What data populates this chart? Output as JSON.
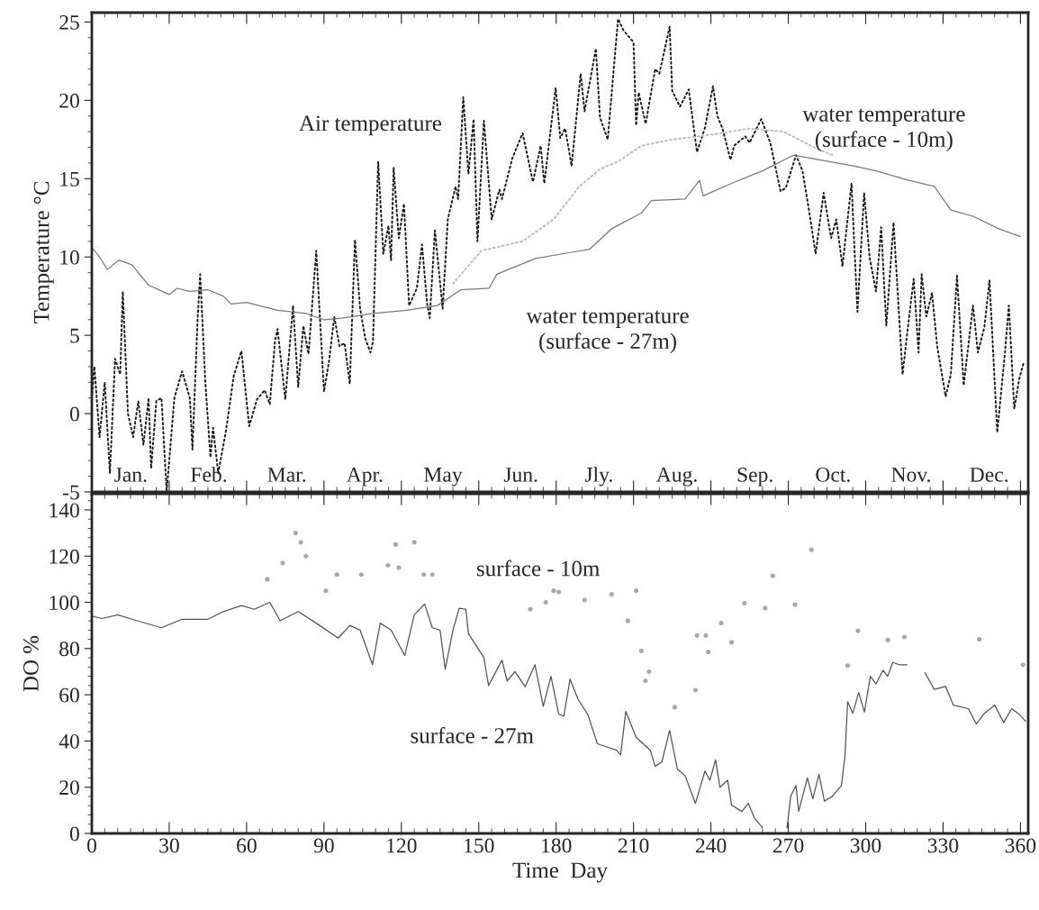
{
  "chart_data": [
    {
      "type": "line",
      "ylabel": "Temperature °C",
      "xlim": [
        0,
        363
      ],
      "ylim": [
        -5,
        25.6
      ],
      "yticks": [
        -5,
        0,
        5,
        10,
        15,
        20,
        25
      ],
      "tick_labels": "y",
      "annotations": [
        "Air temperature",
        "water temperature\n(surface - 10m)",
        "water temperature\n(surface - 27m)",
        "Jan.",
        "Feb.",
        "Mar.",
        "Apr.",
        "May",
        "Jun.",
        "Jly.",
        "Aug.",
        "Sep.",
        "Oct.",
        "Nov.",
        "Dec."
      ],
      "series": [
        {
          "line_style": "dotted",
          "color": "#1a1a1a",
          "x": [
            0,
            1,
            3,
            5,
            7,
            9,
            11,
            12,
            14,
            16,
            18,
            20,
            22,
            23,
            25,
            27,
            29,
            32,
            35,
            38,
            39,
            41,
            42,
            44,
            46,
            47,
            49,
            52,
            55,
            58,
            61,
            64,
            67,
            69,
            71,
            72,
            75,
            78,
            80,
            82,
            84,
            87,
            90,
            92,
            94,
            96,
            98,
            100,
            102,
            104,
            106,
            108,
            109,
            111,
            113,
            115,
            116,
            117,
            119,
            121,
            123,
            126,
            128,
            130,
            131,
            133,
            136,
            138,
            141,
            142,
            144,
            146,
            148,
            149.5,
            152,
            155,
            158,
            159,
            163,
            167,
            171,
            174,
            175.4,
            179.8,
            181.6,
            183.5,
            186,
            189.5,
            191,
            195.4,
            197,
            200,
            204,
            206,
            210,
            211,
            212,
            214.7,
            218.4,
            220,
            224,
            225,
            228,
            231.4,
            234.6,
            237.6,
            240.8,
            242.5,
            244.5,
            247.6,
            249,
            253.3,
            255,
            259.5,
            263,
            267,
            269,
            273,
            275.5,
            278,
            280.6,
            283.7,
            286.6,
            288.6,
            291,
            294.5,
            296.8,
            299.4,
            301.5,
            304,
            306,
            308,
            310.8,
            314.3,
            316,
            318.6,
            320.5,
            321.7,
            323.5,
            325.7,
            327.8,
            331,
            333,
            335.4,
            338,
            341.6,
            343.5,
            346,
            348,
            351,
            354,
            355.5,
            357.6,
            359.5,
            361.3
          ],
          "values": [
            1,
            3,
            -1.5,
            2,
            -3.8,
            3.5,
            2.5,
            7.8,
            0,
            -1.5,
            0.8,
            -2,
            1,
            -3.5,
            0.8,
            1,
            -5,
            1,
            2.7,
            1,
            -2.3,
            6,
            8.9,
            2,
            -2.8,
            -0.9,
            -3.8,
            -1.1,
            2.4,
            4,
            -0.8,
            0.9,
            1.5,
            0.6,
            4.6,
            5.4,
            0.9,
            6.9,
            1.7,
            5.6,
            3.8,
            10.4,
            1.4,
            3.4,
            6.2,
            4.3,
            4.5,
            1.9,
            11.1,
            6.7,
            4.8,
            3.9,
            4.6,
            16.1,
            10.2,
            12,
            9.8,
            15.7,
            11.2,
            13.4,
            6.9,
            8,
            10.8,
            7,
            6.1,
            11.7,
            6.7,
            12.4,
            14.5,
            13.7,
            20.2,
            15.3,
            18.8,
            11,
            18.7,
            12.4,
            14.3,
            13.7,
            16.3,
            17.9,
            14.8,
            17.1,
            14.7,
            20.8,
            17.6,
            18.2,
            15.8,
            21.7,
            19.3,
            23.3,
            18.9,
            17.5,
            25.2,
            24.5,
            23.7,
            18.4,
            20.5,
            18.5,
            22,
            21.7,
            24.7,
            20.6,
            19.6,
            20.7,
            16.7,
            18.2,
            20.9,
            19,
            18.2,
            16.2,
            17.1,
            17.7,
            17.3,
            18.8,
            17.3,
            14.2,
            14.4,
            16.5,
            15.5,
            13,
            10.2,
            14.1,
            11.2,
            12.4,
            9.4,
            14.7,
            6.5,
            14.1,
            10,
            7.8,
            11.9,
            5.6,
            12.2,
            2.5,
            5,
            8.6,
            3.9,
            8.9,
            6.2,
            7.7,
            4.2,
            1.1,
            2.5,
            8.8,
            1.8,
            6.9,
            3.9,
            5.5,
            8.5,
            -1.2,
            3.9,
            6.9,
            0.3,
            2.2,
            3.3
          ]
        },
        {
          "line_style": "solid",
          "color": "#7a7a7a",
          "x": [
            0,
            3,
            6,
            10.5,
            15.5,
            22,
            30,
            33,
            38,
            45,
            51,
            54,
            60,
            72,
            83,
            90,
            97,
            109,
            122,
            134,
            143,
            154,
            157,
            172,
            186,
            193,
            201.5,
            213,
            217,
            230,
            235.6,
            237,
            248,
            260,
            272,
            285.5,
            295.6,
            304,
            316.7,
            326.6,
            333,
            341.6,
            351.6,
            360
          ],
          "values": [
            10.6,
            10,
            9.2,
            9.8,
            9.5,
            8.2,
            7.6,
            8,
            7.8,
            7.9,
            7.5,
            7,
            7.1,
            6.6,
            6.4,
            6,
            6.1,
            6.4,
            6.6,
            6.9,
            7.9,
            8,
            8.9,
            9.9,
            10.3,
            10.5,
            11.8,
            12.8,
            13.6,
            13.7,
            14.9,
            13.9,
            14.7,
            15.5,
            16.5,
            16.1,
            15.8,
            15.5,
            14.9,
            14.5,
            13,
            12.6,
            11.8,
            11.3
          ]
        },
        {
          "line_style": "dotted",
          "color": "#bdbdbd",
          "x": [
            140,
            151,
            167,
            179,
            189,
            197,
            204,
            213,
            225,
            240,
            255,
            268,
            280,
            287
          ],
          "values": [
            8.3,
            10.4,
            11,
            12.4,
            14.5,
            15.6,
            16.1,
            17.1,
            17.5,
            17.8,
            18.2,
            18,
            17,
            16.5
          ]
        }
      ]
    },
    {
      "type": "line",
      "ylabel": "DO %",
      "xlabel": "Time  Day",
      "xlim": [
        0,
        363
      ],
      "ylim": [
        0,
        147
      ],
      "yticks": [
        0,
        20,
        40,
        60,
        80,
        100,
        120,
        140
      ],
      "xticks": [
        0,
        30,
        60,
        90,
        120,
        150,
        180,
        210,
        240,
        270,
        300,
        330,
        360
      ],
      "annotations": [
        "surface - 10m",
        "surface - 27m"
      ],
      "series": [
        {
          "line_style": "solid",
          "color": "#555555",
          "x": [
            0,
            4,
            10,
            15.5,
            27,
            35,
            45,
            51,
            58,
            63,
            69,
            73,
            80,
            87,
            95.5,
            100,
            104,
            108.8,
            111.8,
            116,
            121.3,
            125,
            129,
            132,
            135,
            137,
            140,
            142.4,
            145,
            146,
            152,
            153.8,
            159,
            161,
            164,
            168,
            171.8,
            175,
            178,
            181,
            183,
            185.4,
            188.5,
            192.3,
            196,
            203.4,
            205,
            207,
            211,
            216.5,
            218.4,
            221,
            224,
            227,
            230,
            234,
            237.7,
            239.6,
            241.8,
            243.5,
            246.5,
            248,
            252,
            254.5,
            256.9,
            260,
            264,
            269.5,
            271,
            273,
            274,
            277.4,
            279.5,
            281.9,
            284,
            287,
            290.6,
            292,
            293,
            295,
            297.3,
            299.5,
            301.8,
            304,
            306.7,
            308.5,
            310.5,
            313,
            316,
            319.5,
            323,
            326.6,
            331,
            334,
            339.8,
            342.9,
            346,
            350,
            353.5,
            356.6,
            359,
            362
          ],
          "values": [
            94,
            93,
            94.6,
            92.7,
            89,
            92.7,
            92.7,
            96,
            98.6,
            97,
            100,
            92,
            96,
            91,
            84.5,
            90,
            88,
            73,
            91,
            88,
            77,
            94.6,
            99.3,
            89,
            88,
            71,
            88,
            97.4,
            97,
            86.5,
            76,
            64,
            75,
            66,
            70,
            63.5,
            73,
            55,
            68,
            51.6,
            50.8,
            66.8,
            58,
            51.4,
            38.8,
            36,
            34,
            52.8,
            41.6,
            36,
            29,
            31,
            44.6,
            27.8,
            25,
            13,
            27,
            23,
            31.8,
            20,
            23,
            12.3,
            9.5,
            13,
            6.6,
            2.5,
            null,
            2.5,
            16.4,
            20.7,
            9.5,
            24,
            15,
            25.6,
            14,
            16,
            20.7,
            33.8,
            57,
            52,
            61,
            52.5,
            68,
            64.7,
            70.6,
            68,
            74,
            73,
            73,
            null,
            69.5,
            62.3,
            63.6,
            55.5,
            54,
            47.3,
            52,
            55.5,
            48,
            54,
            52,
            48.6
          ]
        },
        {
          "type": "scatter",
          "marker": "circle",
          "color": "#a8a8a8",
          "x": [
            68,
            74,
            79,
            81,
            83,
            90.7,
            95,
            104.5,
            114.8,
            117.8,
            119,
            125,
            128.7,
            132,
            170,
            176,
            179,
            181,
            191,
            201.5,
            207.8,
            211,
            213,
            214.6,
            216,
            226,
            234,
            234.6,
            238,
            239,
            244,
            248,
            253,
            261,
            264,
            272.6,
            279,
            293,
            297,
            308.6,
            315,
            344,
            361
          ],
          "values": [
            110,
            117,
            130,
            126,
            120,
            105,
            112,
            112,
            116,
            125,
            115,
            126,
            112,
            112,
            97,
            100,
            105,
            104.5,
            101,
            103.5,
            92,
            105,
            79,
            66,
            70,
            54.6,
            62,
            85.6,
            85.6,
            78.5,
            91,
            82.7,
            99.7,
            97.5,
            111.5,
            99,
            122.8,
            72.6,
            87.7,
            83.7,
            85,
            84,
            73
          ]
        }
      ]
    }
  ]
}
